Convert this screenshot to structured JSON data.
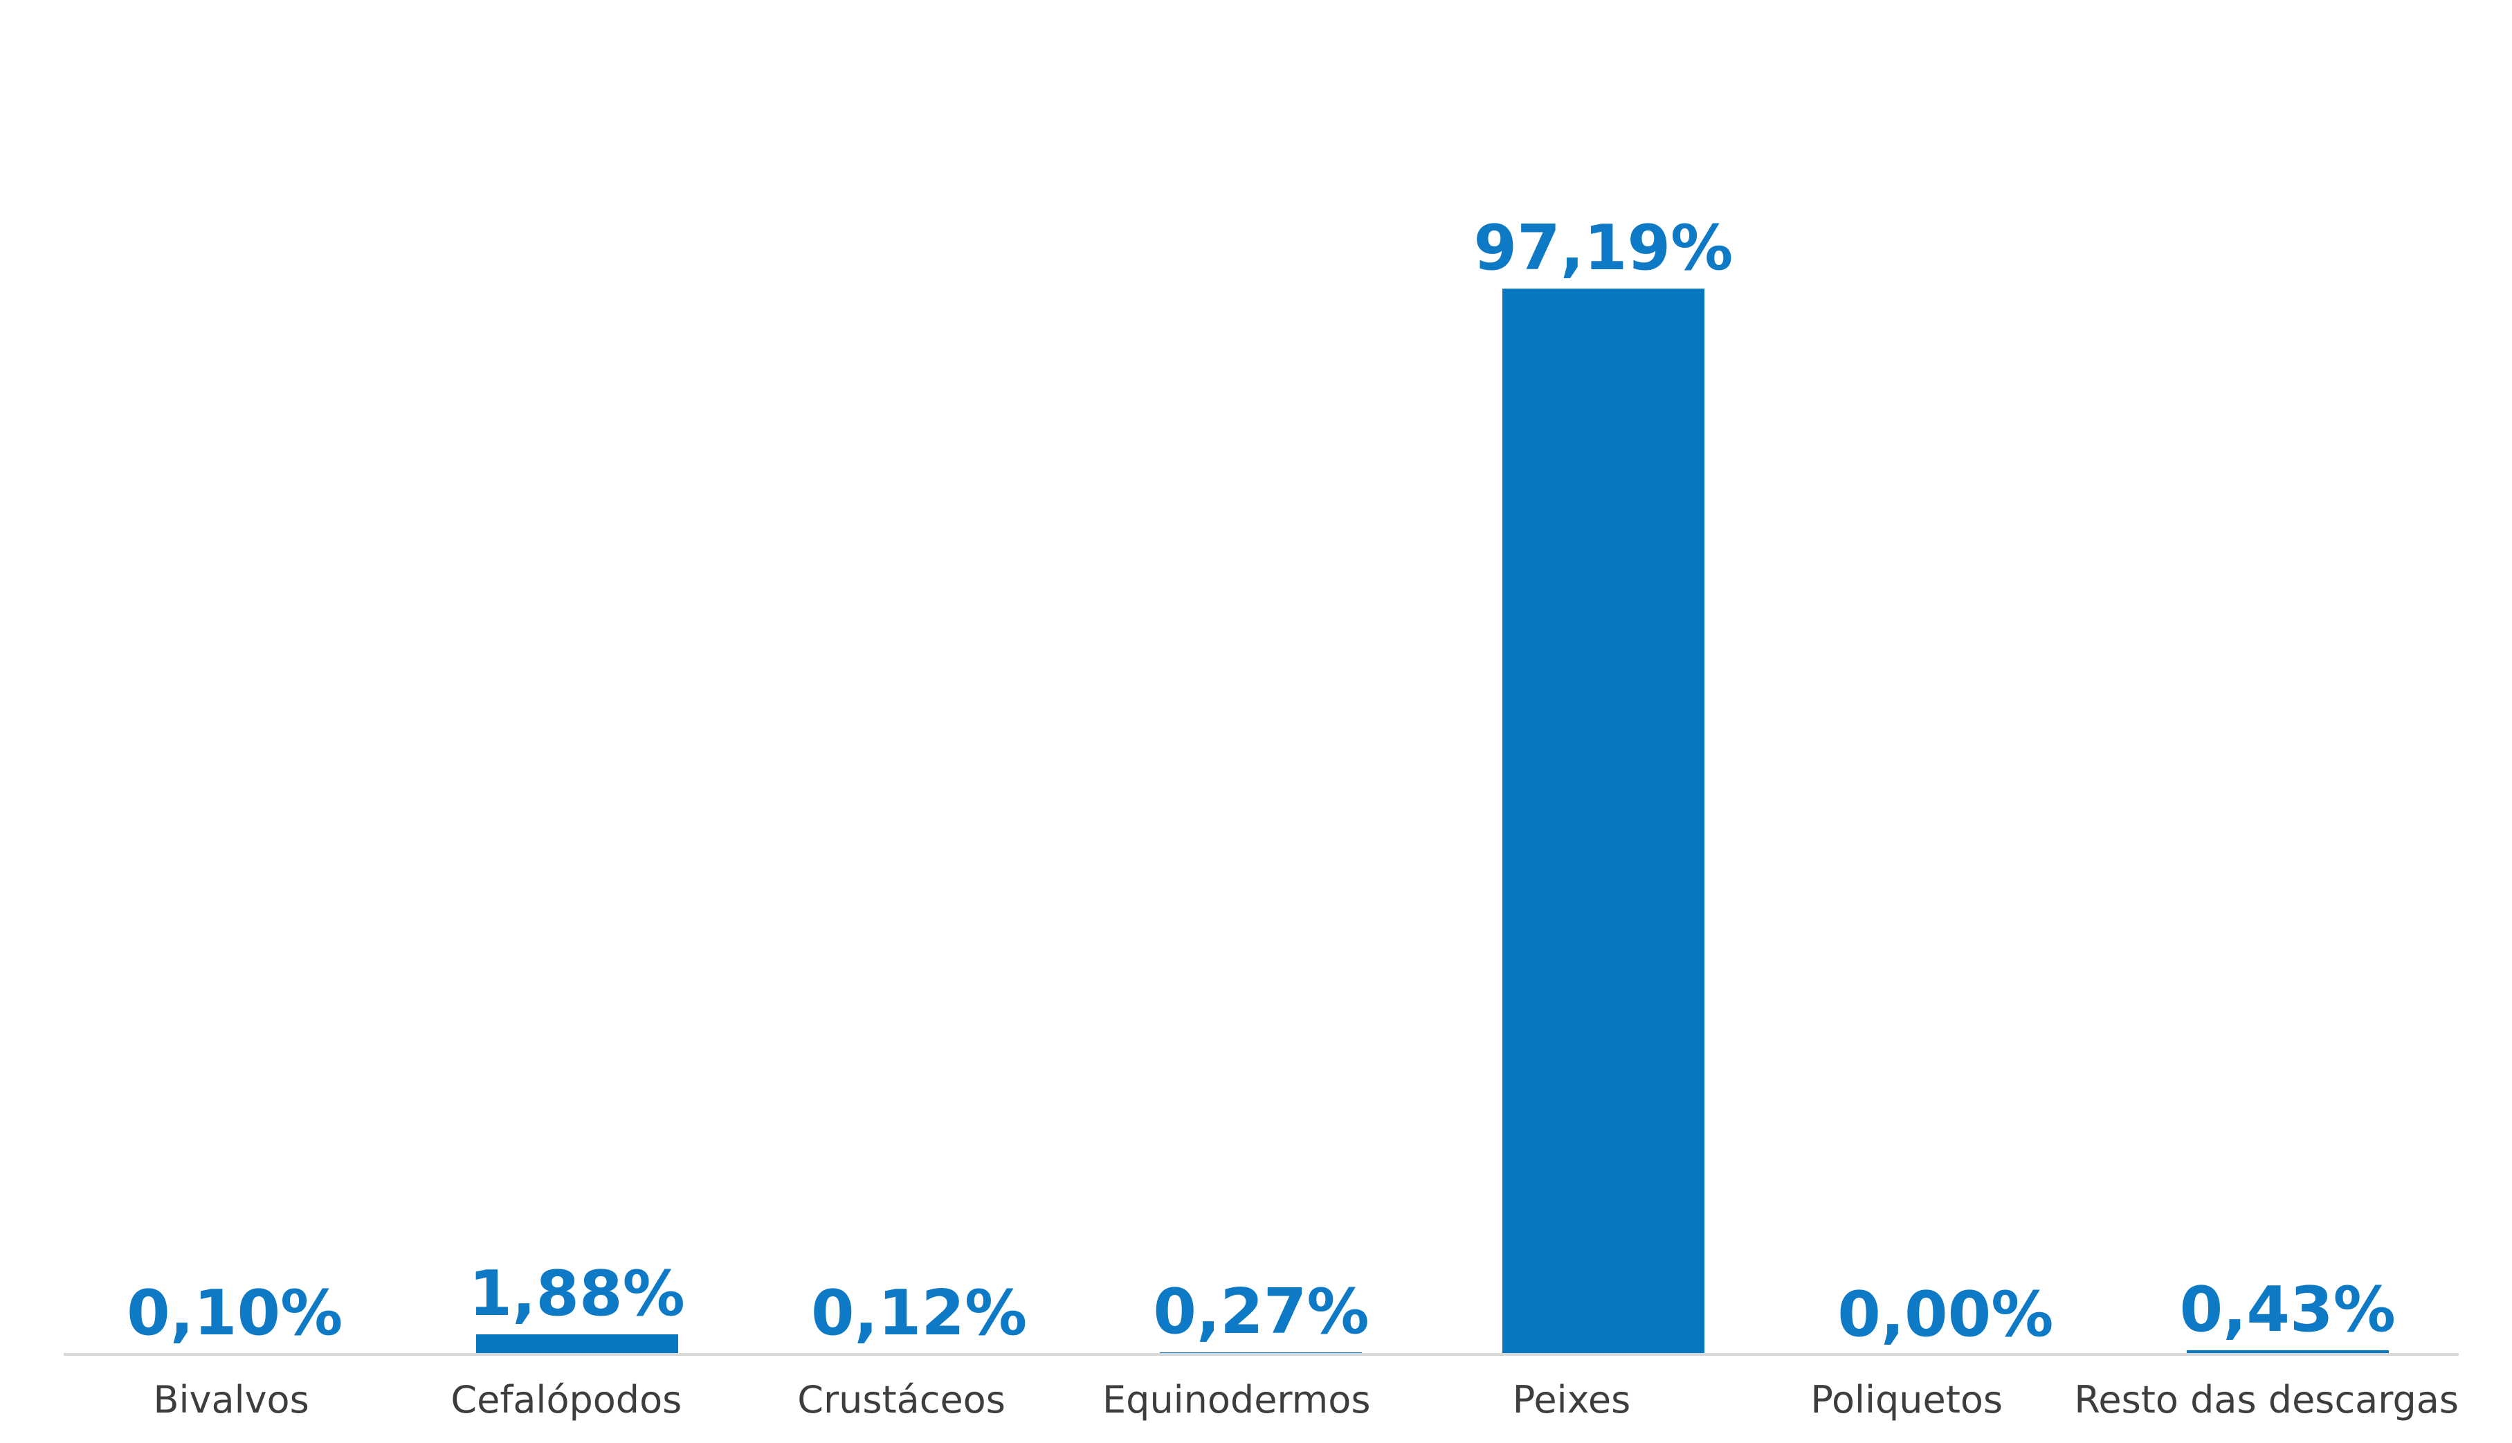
{
  "page": {
    "background": "#ffffff"
  },
  "chart_data": {
    "type": "bar",
    "title": "",
    "xlabel": "",
    "ylabel": "",
    "categories": [
      "Bivalvos",
      "Cefalópodos",
      "Crustáceos",
      "Equinodermos",
      "Peixes",
      "Poliquetos",
      "Resto das descargas"
    ],
    "values": [
      0.1,
      1.88,
      0.12,
      0.27,
      97.19,
      0.0,
      0.43
    ],
    "value_labels": [
      "0,10%",
      "1,88%",
      "0,12%",
      "0,27%",
      "97,19%",
      "0,00%",
      "0,43%"
    ],
    "ylim": [
      0,
      100
    ],
    "grid": false,
    "legend": null,
    "value_labels_position": "above-bars",
    "colors": {
      "bar": "#0878c2",
      "value_label": "#0e7ac6",
      "category_label": "#3d3d3d",
      "axis_line": "#d9d9d9"
    }
  }
}
